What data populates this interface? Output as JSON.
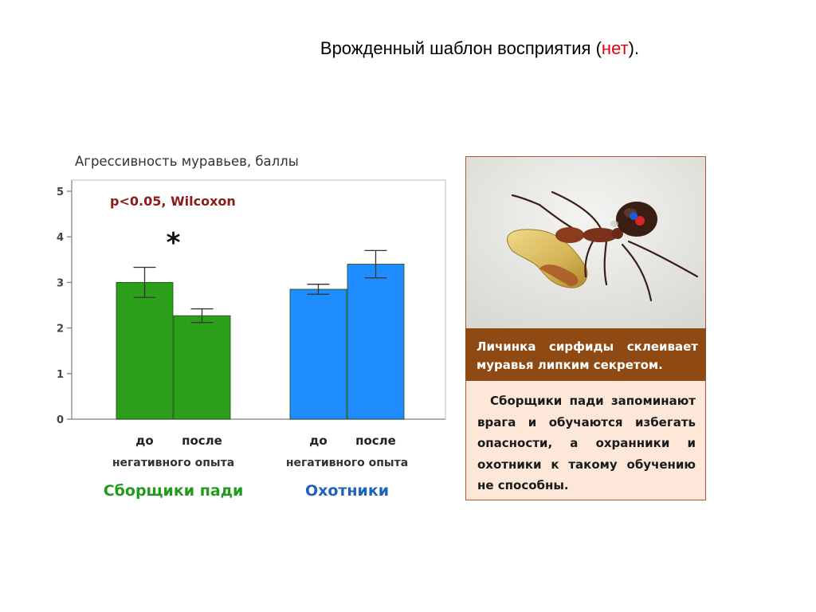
{
  "slide": {
    "title_main": "Врожденный шаблон восприятия (",
    "title_accent": "нет",
    "title_end": ").",
    "accent_color": "#e3000f"
  },
  "chart_data": {
    "type": "bar",
    "title": "Агрессивность муравьев, баллы",
    "annotation": "p<0.05, Wilcoxon",
    "significance_marker": "*",
    "ylim": [
      0,
      5
    ],
    "yticks": [
      "0",
      "1",
      "2",
      "3",
      "4",
      "5"
    ],
    "grid": false,
    "groups": [
      {
        "name": "Сборщики пади",
        "color": "#2ca01a",
        "name_color": "#229a1c",
        "categories": [
          "до",
          "после"
        ],
        "values": [
          3.0,
          2.27
        ],
        "error": [
          0.33,
          0.15
        ],
        "subtitle": "негативного опыта",
        "significant": true
      },
      {
        "name": "Охотники",
        "color": "#1f8cff",
        "name_color": "#1f63b8",
        "categories": [
          "до",
          "после"
        ],
        "values": [
          2.85,
          3.4
        ],
        "error": [
          0.11,
          0.3
        ],
        "subtitle": "негативного опыта",
        "significant": false
      }
    ]
  },
  "photo": {
    "alt": "ant-and-syrphid-larva-photo"
  },
  "caption": "Личинка сирфиды склеивает муравья липким секретом.",
  "info_text": "Сборщики пади запоминают врага и обучаются избегать опасности, а охранники и охотники к такому обучению не способны.",
  "colors": {
    "caption_bg": "#8e4a12",
    "info_bg": "#fde7d8",
    "annotation": "#8b1a1a"
  }
}
